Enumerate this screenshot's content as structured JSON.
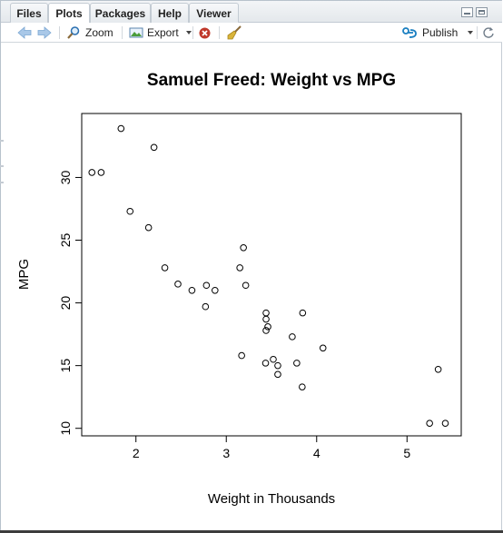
{
  "tabs": [
    {
      "label": "Files",
      "active": false
    },
    {
      "label": "Plots",
      "active": true
    },
    {
      "label": "Packages",
      "active": false
    },
    {
      "label": "Help",
      "active": false
    },
    {
      "label": "Viewer",
      "active": false
    }
  ],
  "toolbar": {
    "back_icon": "arrow-left-icon",
    "forward_icon": "arrow-right-icon",
    "zoom_label": "Zoom",
    "export_label": "Export",
    "remove_icon": "remove-plot-icon",
    "clear_icon": "broom-icon",
    "publish_label": "Publish",
    "refresh_icon": "refresh-icon"
  },
  "colors": {
    "accent": "#1a7fc1",
    "remove": "#c0392b",
    "broom": "#c9a227"
  },
  "chart_data": {
    "type": "scatter",
    "title": "Samuel Freed: Weight vs MPG",
    "xlabel": "Weight in Thousands",
    "ylabel": "MPG",
    "xlim": [
      1.4,
      5.6
    ],
    "ylim": [
      9.4,
      35.1
    ],
    "xticks": [
      2,
      3,
      4,
      5
    ],
    "yticks": [
      10,
      15,
      20,
      25,
      30
    ],
    "grid": false,
    "points": [
      {
        "x": 2.62,
        "y": 21.0
      },
      {
        "x": 2.875,
        "y": 21.0
      },
      {
        "x": 2.32,
        "y": 22.8
      },
      {
        "x": 3.215,
        "y": 21.4
      },
      {
        "x": 3.44,
        "y": 18.7
      },
      {
        "x": 3.46,
        "y": 18.1
      },
      {
        "x": 3.57,
        "y": 14.3
      },
      {
        "x": 3.19,
        "y": 24.4
      },
      {
        "x": 3.15,
        "y": 22.8
      },
      {
        "x": 3.44,
        "y": 19.2
      },
      {
        "x": 3.44,
        "y": 17.8
      },
      {
        "x": 4.07,
        "y": 16.4
      },
      {
        "x": 3.73,
        "y": 17.3
      },
      {
        "x": 3.78,
        "y": 15.2
      },
      {
        "x": 5.25,
        "y": 10.4
      },
      {
        "x": 5.424,
        "y": 10.4
      },
      {
        "x": 5.345,
        "y": 14.7
      },
      {
        "x": 2.2,
        "y": 32.4
      },
      {
        "x": 1.615,
        "y": 30.4
      },
      {
        "x": 1.835,
        "y": 33.9
      },
      {
        "x": 2.465,
        "y": 21.5
      },
      {
        "x": 3.52,
        "y": 15.5
      },
      {
        "x": 3.435,
        "y": 15.2
      },
      {
        "x": 3.84,
        "y": 13.3
      },
      {
        "x": 3.845,
        "y": 19.2
      },
      {
        "x": 1.935,
        "y": 27.3
      },
      {
        "x": 2.14,
        "y": 26.0
      },
      {
        "x": 1.513,
        "y": 30.4
      },
      {
        "x": 3.17,
        "y": 15.8
      },
      {
        "x": 2.77,
        "y": 19.7
      },
      {
        "x": 3.57,
        "y": 15.0
      },
      {
        "x": 2.78,
        "y": 21.4
      }
    ]
  }
}
